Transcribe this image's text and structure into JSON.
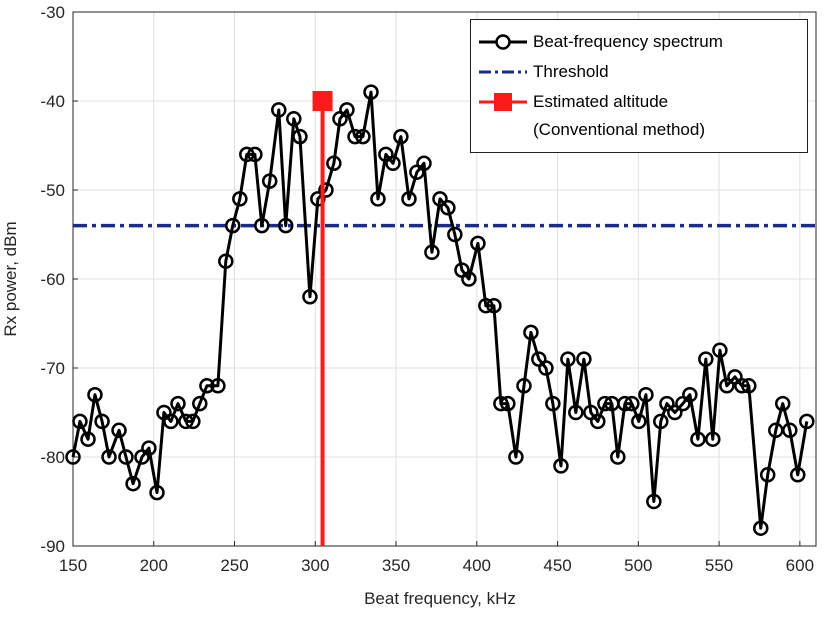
{
  "chart_data": {
    "type": "line",
    "xlabel": "Beat frequency, kHz",
    "ylabel": "Rx power, dBm",
    "xlim": [
      150,
      610
    ],
    "ylim": [
      -90,
      -30
    ],
    "xticks": [
      150,
      200,
      250,
      300,
      350,
      400,
      450,
      500,
      550,
      600
    ],
    "yticks": [
      -90,
      -80,
      -70,
      -60,
      -50,
      -40,
      -30
    ],
    "grid": true,
    "legend": "upper right",
    "series": [
      {
        "name": "Beat-frequency spectrum",
        "color": "#000000",
        "x": [
          150.0,
          154.3,
          159.3,
          163.6,
          168.0,
          172.3,
          178.5,
          182.8,
          187.2,
          192.7,
          197.0,
          202.0,
          206.3,
          210.6,
          215.0,
          219.9,
          224.2,
          228.5,
          232.9,
          239.7,
          244.6,
          248.9,
          253.3,
          257.6,
          262.6,
          266.9,
          271.8,
          277.4,
          281.7,
          286.7,
          290.5,
          296.7,
          301.6,
          306.6,
          311.5,
          315.3,
          319.6,
          324.6,
          329.5,
          334.5,
          338.8,
          343.7,
          348.1,
          353.0,
          358.0,
          362.9,
          367.3,
          372.2,
          377.2,
          382.1,
          386.4,
          390.8,
          395.1,
          400.7,
          405.6,
          410.6,
          414.9,
          419.2,
          424.2,
          429.2,
          433.5,
          438.4,
          442.8,
          447.1,
          452.1,
          456.4,
          461.3,
          466.3,
          470.6,
          474.9,
          479.3,
          483.6,
          487.3,
          491.7,
          496.0,
          500.3,
          504.7,
          509.6,
          513.9,
          517.7,
          522.6,
          527.6,
          531.9,
          536.9,
          541.8,
          546.1,
          550.5,
          554.8,
          559.8,
          564.1,
          568.4,
          575.8,
          580.1,
          585.1,
          589.4,
          593.8,
          598.7,
          604.3
        ],
        "values": [
          -80,
          -76,
          -78,
          -73,
          -76,
          -80,
          -77,
          -80,
          -83,
          -80,
          -79,
          -84,
          -75,
          -76,
          -74,
          -76,
          -76,
          -74,
          -72,
          -72,
          -58,
          -54,
          -51,
          -46,
          -46,
          -54,
          -49,
          -41,
          -54,
          -42,
          -44,
          -62,
          -51,
          -50,
          -47,
          -42,
          -41,
          -44,
          -44,
          -39,
          -51,
          -46,
          -47,
          -44,
          -51,
          -48,
          -47,
          -57,
          -51,
          -52,
          -55,
          -59,
          -60,
          -56,
          -63,
          -63,
          -74,
          -74,
          -80,
          -72,
          -66,
          -69,
          -70,
          -74,
          -81,
          -69,
          -75,
          -69,
          -75,
          -76,
          -74,
          -74,
          -80,
          -74,
          -74,
          -76,
          -73,
          -85,
          -76,
          -74,
          -75,
          -74,
          -73,
          -78,
          -69,
          -78,
          -68,
          -72,
          -71,
          -72,
          -72,
          -88,
          -82,
          -77,
          -74,
          -77,
          -82,
          -76
        ]
      }
    ],
    "threshold": {
      "name": "Threshold",
      "color": "#1a2b8c",
      "value": -54
    },
    "estimate": {
      "name": "Estimated altitude\n(Conventional method)",
      "color": "#ff1a1a",
      "x": 304.5,
      "value": -40
    }
  }
}
